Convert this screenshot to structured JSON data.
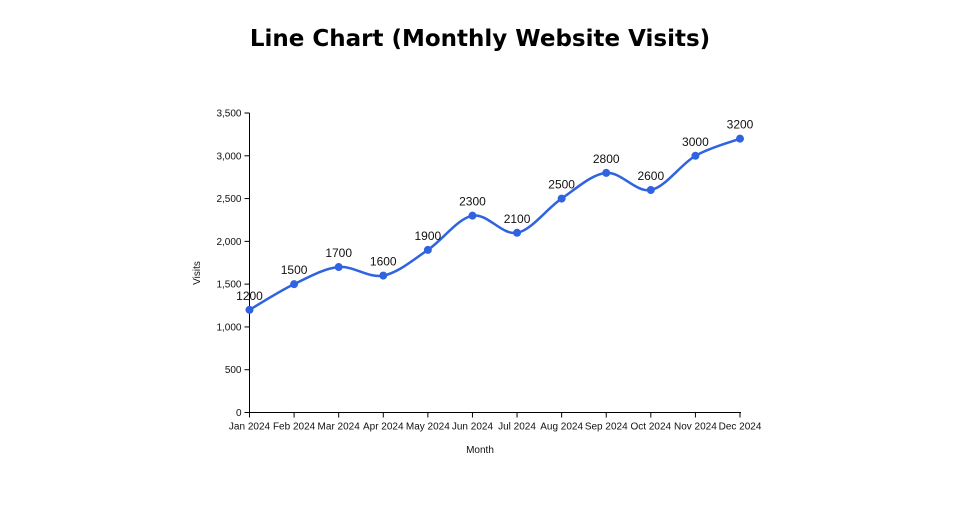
{
  "chart_data": {
    "type": "line",
    "title": "Line Chart (Monthly Website Visits)",
    "xlabel": "Month",
    "ylabel": "Visits",
    "categories": [
      "Jan 2024",
      "Feb 2024",
      "Mar 2024",
      "Apr 2024",
      "May 2024",
      "Jun 2024",
      "Jul 2024",
      "Aug 2024",
      "Sep 2024",
      "Oct 2024",
      "Nov 2024",
      "Dec 2024"
    ],
    "values": [
      1200,
      1500,
      1700,
      1600,
      1900,
      2300,
      2100,
      2500,
      2800,
      2600,
      3000,
      3200
    ],
    "ylim": [
      0,
      3500
    ],
    "yticks": [
      0,
      500,
      1000,
      1500,
      2000,
      2500,
      3000,
      3500
    ],
    "ytick_labels": [
      "0",
      "500",
      "1,000",
      "1,500",
      "2,000",
      "2,500",
      "3,000",
      "3,500"
    ],
    "data_labels": [
      "1200",
      "1500",
      "1700",
      "1600",
      "1900",
      "2300",
      "2100",
      "2500",
      "2800",
      "2600",
      "3000",
      "3200"
    ],
    "line_color": "#2f63e0",
    "grid": false,
    "legend": "none"
  }
}
